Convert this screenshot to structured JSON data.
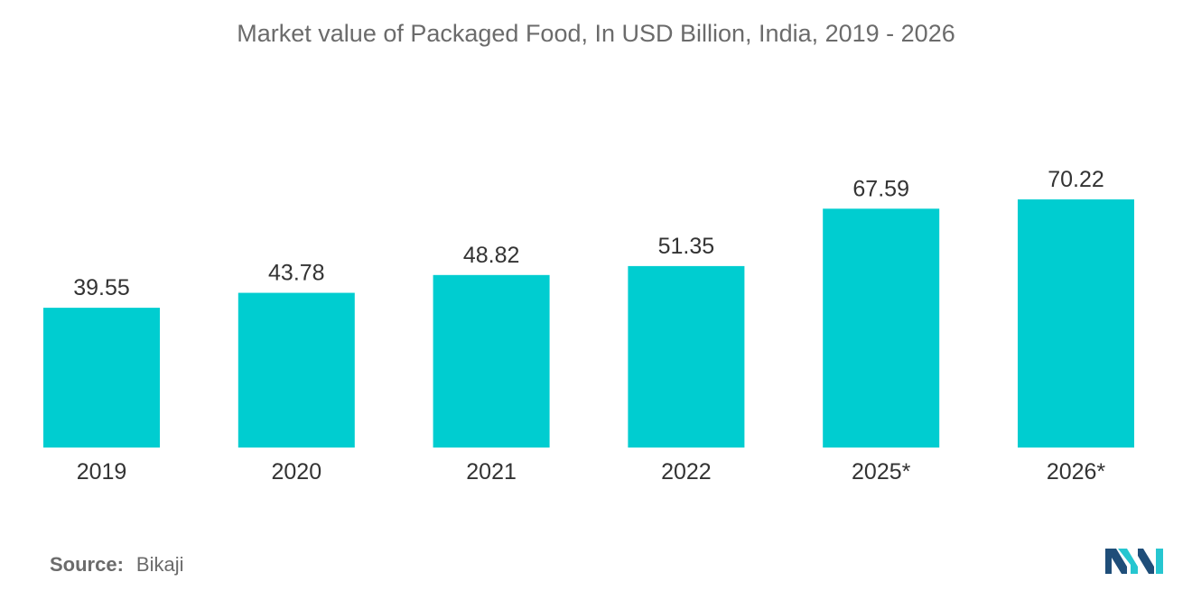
{
  "chart_data": {
    "type": "bar",
    "title": "Market value of Packaged Food, In USD Billion, India, 2019 - 2026",
    "categories": [
      "2019",
      "2020",
      "2021",
      "2022",
      "2025*",
      "2026*"
    ],
    "values": [
      39.55,
      43.78,
      48.82,
      51.35,
      67.59,
      70.22
    ],
    "value_labels": [
      "39.55",
      "43.78",
      "48.82",
      "51.35",
      "67.59",
      "70.22"
    ],
    "xlabel": "",
    "ylabel": "",
    "ylim": [
      0,
      70.22
    ],
    "grid": false,
    "bar_color": "#00cdd0"
  },
  "source": {
    "label": "Source:",
    "value": "Bikaji"
  },
  "colors": {
    "text": "#6b6b6b",
    "logo_dark": "#1f4e79",
    "logo_light": "#26c6d0"
  }
}
